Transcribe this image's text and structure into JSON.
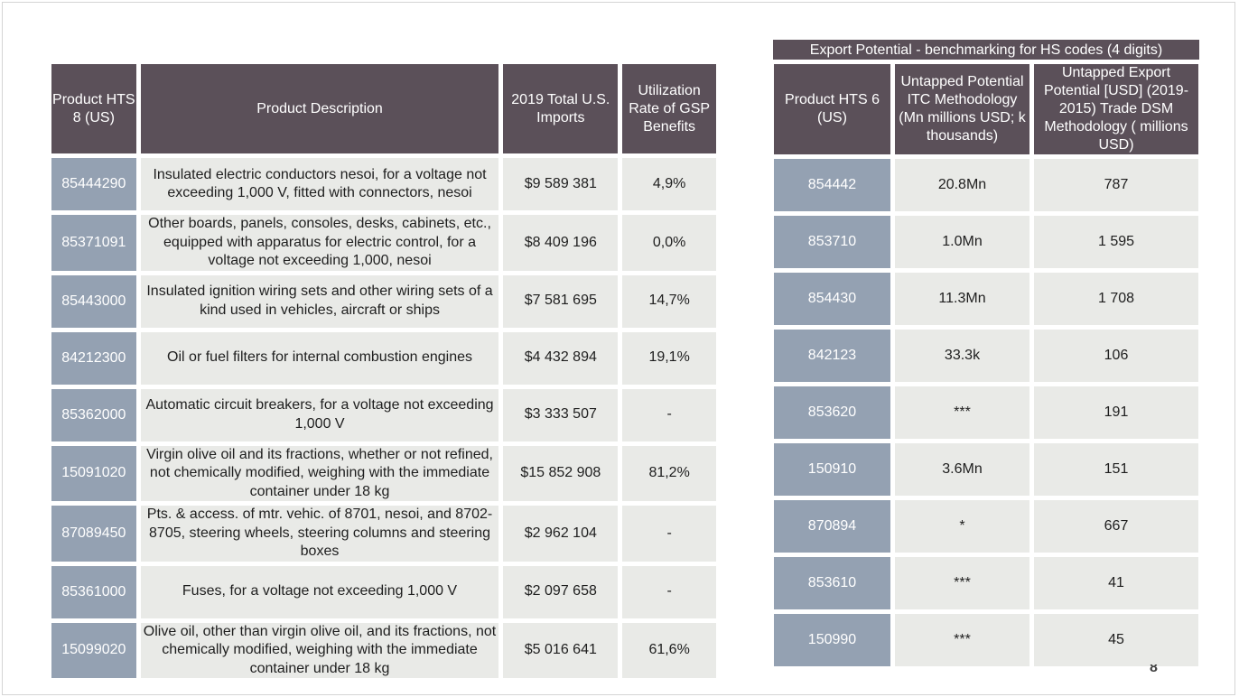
{
  "left_table": {
    "headers": [
      "Product HTS 8 (US)",
      "Product Description",
      "2019 Total U.S. Imports",
      "Utilization Rate of GSP Benefits"
    ],
    "rows": [
      {
        "hts8": "85444290",
        "description": "Insulated electric conductors nesoi, for a voltage not exceeding 1,000 V, fitted with connectors, nesoi",
        "imports": "$9 589 381",
        "utilization": "4,9%"
      },
      {
        "hts8": "85371091",
        "description": "Other boards, panels, consoles, desks, cabinets, etc., equipped with apparatus for electric control, for a voltage not exceeding 1,000, nesoi",
        "imports": "$8 409 196",
        "utilization": "0,0%"
      },
      {
        "hts8": "85443000",
        "description": "Insulated ignition wiring sets and other wiring sets of a kind used in vehicles, aircraft or ships",
        "imports": "$7 581 695",
        "utilization": "14,7%"
      },
      {
        "hts8": "84212300",
        "description": "Oil or fuel filters for internal combustion engines",
        "imports": "$4 432 894",
        "utilization": "19,1%"
      },
      {
        "hts8": "85362000",
        "description": "Automatic circuit breakers, for a voltage not exceeding 1,000 V",
        "imports": "$3 333 507",
        "utilization": "-"
      },
      {
        "hts8": "15091020",
        "description": "Virgin olive oil and its fractions, whether or not refined, not chemically modified, weighing with the immediate container under 18 kg",
        "imports": "$15 852 908",
        "utilization": "81,2%"
      },
      {
        "hts8": "87089450",
        "description": "Pts. & access. of mtr. vehic. of 8701, nesoi, and 8702-8705, steering wheels, steering columns and steering boxes",
        "imports": "$2 962 104",
        "utilization": "-"
      },
      {
        "hts8": "85361000",
        "description": "Fuses, for a voltage not exceeding 1,000 V",
        "imports": "$2 097 658",
        "utilization": "-"
      },
      {
        "hts8": "15099020",
        "description": "Olive oil, other than virgin olive oil, and its fractions, not chemically modified, weighing with the immediate container under 18 kg",
        "imports": "$5 016 641",
        "utilization": "61,6%"
      }
    ]
  },
  "right_table": {
    "title": "Export Potential - benchmarking for HS codes (4 digits)",
    "headers": [
      "Product HTS 6 (US)",
      "Untapped Potential ITC Methodology (Mn millions USD; k thousands)",
      "Untapped Export Potential  [USD] (2019-2015) Trade DSM Methodology ( millions USD)"
    ],
    "rows": [
      {
        "hts6": "854442",
        "itc": "20.8Mn",
        "dsm": "787"
      },
      {
        "hts6": "853710",
        "itc": "1.0Mn",
        "dsm": "1 595"
      },
      {
        "hts6": "854430",
        "itc": "11.3Mn",
        "dsm": "1 708"
      },
      {
        "hts6": "842123",
        "itc": "33.3k",
        "dsm": "106"
      },
      {
        "hts6": "853620",
        "itc": "***",
        "dsm": "191"
      },
      {
        "hts6": "150910",
        "itc": "3.6Mn",
        "dsm": "151"
      },
      {
        "hts6": "870894",
        "itc": "*",
        "dsm": "667"
      },
      {
        "hts6": "853610",
        "itc": "***",
        "dsm": "41"
      },
      {
        "hts6": "150990",
        "itc": "***",
        "dsm": "45"
      }
    ]
  },
  "page_number": "8"
}
